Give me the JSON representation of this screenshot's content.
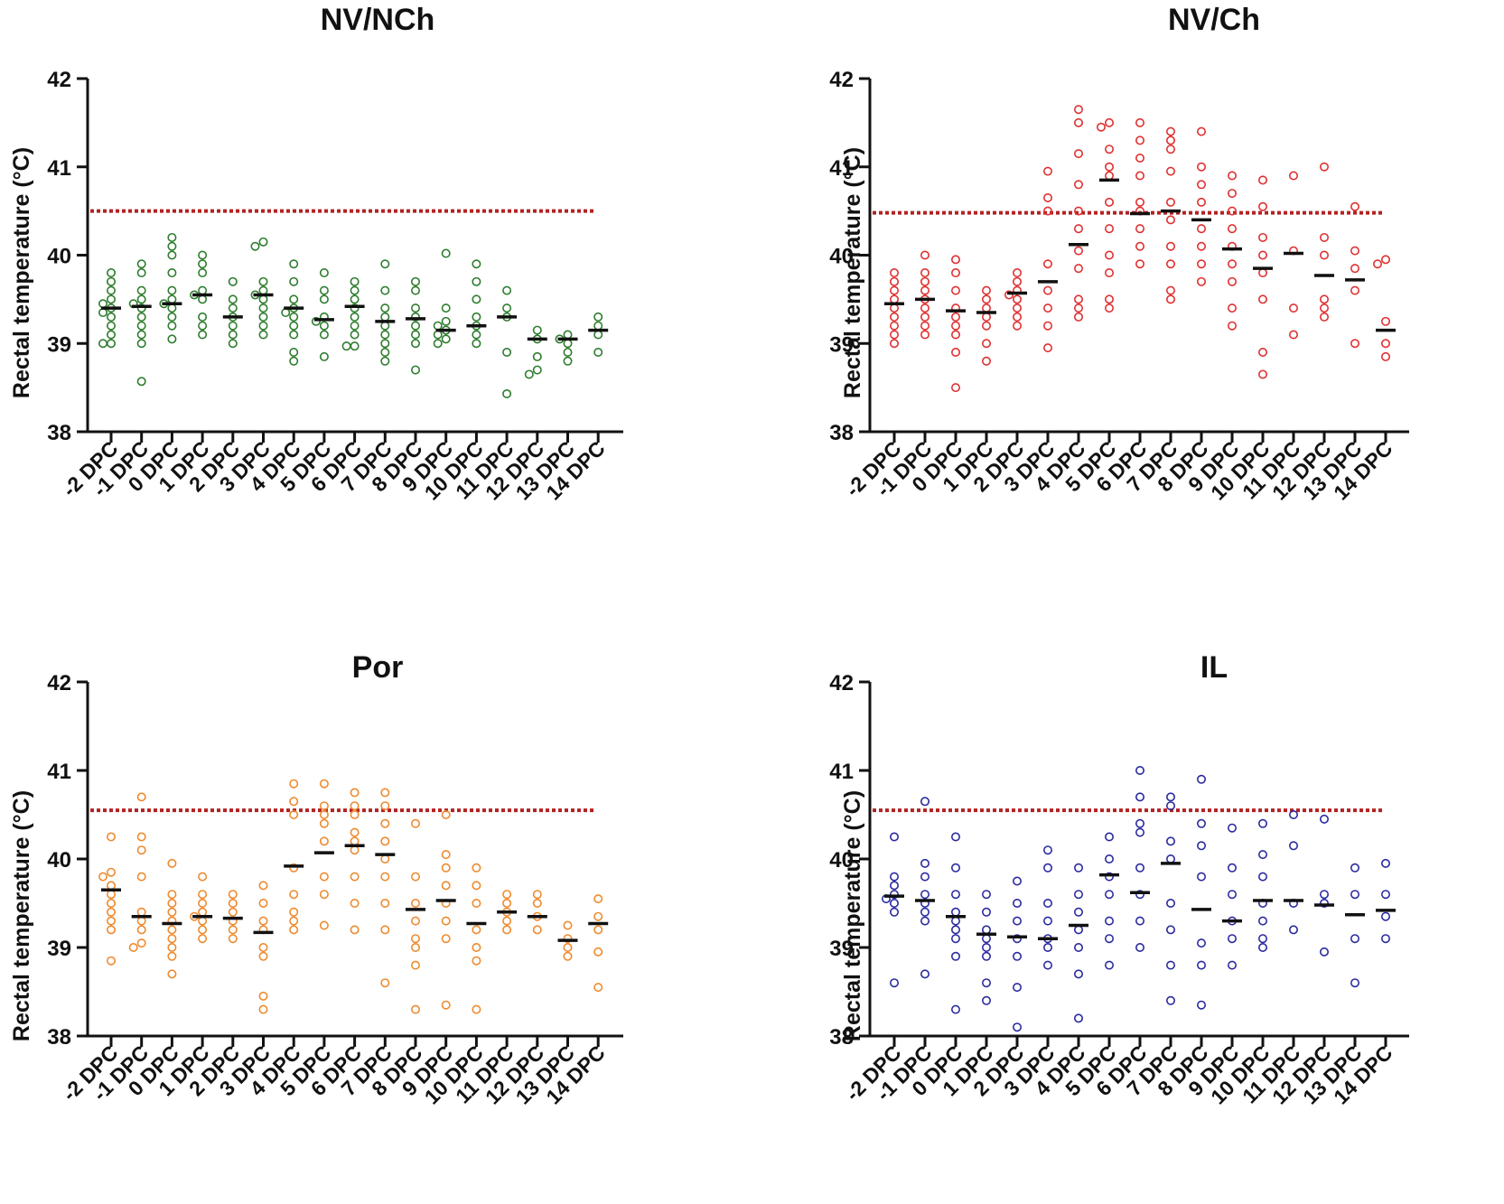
{
  "chart_data": [
    {
      "type": "scatter",
      "title": "NV/NCh",
      "ylabel": "Rectal temperature (°C)",
      "xlabel": "",
      "ylim": [
        38,
        42
      ],
      "yticks": [
        "38",
        "39",
        "40",
        "41",
        "42"
      ],
      "categories": [
        "-2 DPC",
        "-1 DPC",
        "0 DPC",
        "1 DPC",
        "2 DPC",
        "3 DPC",
        "4 DPC",
        "5 DPC",
        "6 DPC",
        "7 DPC",
        "8 DPC",
        "9 DPC",
        "10 DPC",
        "11 DPC",
        "12 DPC",
        "13 DPC",
        "14 DPC"
      ],
      "color": "#2e7d2e",
      "threshold": 40.5,
      "threshold_color": "#b22222",
      "medians": [
        39.4,
        39.42,
        39.45,
        39.55,
        39.3,
        39.55,
        39.4,
        39.27,
        39.42,
        39.25,
        39.28,
        39.15,
        39.2,
        39.3,
        39.05,
        39.05,
        39.15
      ],
      "points": [
        [
          39.8,
          39.7,
          39.6,
          39.5,
          39.45,
          39.4,
          39.35,
          39.3,
          39.2,
          39.1,
          39.0,
          39.0
        ],
        [
          39.9,
          39.8,
          39.6,
          39.5,
          39.45,
          39.4,
          39.3,
          39.2,
          39.1,
          39.0,
          38.57
        ],
        [
          40.2,
          40.1,
          40.0,
          39.8,
          39.6,
          39.5,
          39.45,
          39.4,
          39.3,
          39.2,
          39.05
        ],
        [
          40.0,
          39.9,
          39.8,
          39.6,
          39.55,
          39.5,
          39.3,
          39.2,
          39.1
        ],
        [
          39.7,
          39.5,
          39.4,
          39.3,
          39.2,
          39.1,
          39.0
        ],
        [
          40.15,
          40.1,
          39.7,
          39.6,
          39.55,
          39.5,
          39.4,
          39.3,
          39.2,
          39.1
        ],
        [
          39.9,
          39.7,
          39.5,
          39.4,
          39.35,
          39.3,
          39.2,
          39.1,
          38.9,
          38.8
        ],
        [
          39.8,
          39.6,
          39.5,
          39.3,
          39.25,
          39.2,
          39.1,
          38.85
        ],
        [
          39.7,
          39.6,
          39.5,
          39.4,
          39.3,
          39.2,
          39.1,
          38.97,
          38.97
        ],
        [
          39.9,
          39.6,
          39.4,
          39.3,
          39.2,
          39.1,
          39.0,
          38.9,
          38.8
        ],
        [
          39.7,
          39.6,
          39.4,
          39.3,
          39.2,
          39.1,
          39.0,
          38.7
        ],
        [
          40.02,
          39.4,
          39.25,
          39.2,
          39.15,
          39.1,
          39.05,
          39.0
        ],
        [
          39.9,
          39.7,
          39.5,
          39.3,
          39.2,
          39.1,
          39.0
        ],
        [
          39.6,
          39.4,
          39.3,
          38.9,
          38.43
        ],
        [
          39.15,
          39.05,
          38.85,
          38.7,
          38.65
        ],
        [
          39.1,
          39.05,
          39.0,
          38.9,
          38.8
        ],
        [
          39.3,
          39.2,
          39.1,
          38.9
        ]
      ]
    },
    {
      "type": "scatter",
      "title": "NV/Ch",
      "ylabel": "Rectal temperature (°C)",
      "xlabel": "",
      "ylim": [
        38,
        42
      ],
      "yticks": [
        "38",
        "39",
        "40",
        "41",
        "42"
      ],
      "categories": [
        "-2 DPC",
        "-1 DPC",
        "0 DPC",
        "1 DPC",
        "2 DPC",
        "3 DPC",
        "4 DPC",
        "5 DPC",
        "6 DPC",
        "7 DPC",
        "8 DPC",
        "9 DPC",
        "10 DPC",
        "11 DPC",
        "12 DPC",
        "13 DPC",
        "14 DPC"
      ],
      "color": "#e03030",
      "threshold": 40.48,
      "threshold_color": "#b22222",
      "medians": [
        39.45,
        39.5,
        39.37,
        39.35,
        39.57,
        39.7,
        40.12,
        40.85,
        40.47,
        40.5,
        40.4,
        40.07,
        39.85,
        40.02,
        39.77,
        39.72,
        39.15
      ],
      "points": [
        [
          39.8,
          39.7,
          39.6,
          39.5,
          39.4,
          39.3,
          39.2,
          39.1,
          39.0
        ],
        [
          40.0,
          39.8,
          39.7,
          39.6,
          39.5,
          39.4,
          39.3,
          39.2,
          39.1
        ],
        [
          39.95,
          39.8,
          39.6,
          39.4,
          39.3,
          39.2,
          39.1,
          38.9,
          38.5
        ],
        [
          39.6,
          39.5,
          39.4,
          39.3,
          39.2,
          39.0,
          38.8
        ],
        [
          39.8,
          39.7,
          39.6,
          39.55,
          39.5,
          39.4,
          39.3,
          39.2
        ],
        [
          40.95,
          40.65,
          40.5,
          39.9,
          39.6,
          39.4,
          39.2,
          38.95
        ],
        [
          41.65,
          41.5,
          41.15,
          40.8,
          40.5,
          40.3,
          40.05,
          39.85,
          39.5,
          39.4,
          39.3
        ],
        [
          41.5,
          41.45,
          41.2,
          41.0,
          40.9,
          40.6,
          40.3,
          40.0,
          39.8,
          39.5,
          39.4
        ],
        [
          41.5,
          41.3,
          41.1,
          40.9,
          40.6,
          40.5,
          40.3,
          40.1,
          39.9
        ],
        [
          41.4,
          41.3,
          41.2,
          40.95,
          40.6,
          40.4,
          40.1,
          39.9,
          39.6,
          39.5
        ],
        [
          41.4,
          41.0,
          40.8,
          40.6,
          40.3,
          40.1,
          39.9,
          39.7
        ],
        [
          40.9,
          40.7,
          40.5,
          40.3,
          40.1,
          39.9,
          39.7,
          39.4,
          39.2
        ],
        [
          40.85,
          40.55,
          40.2,
          40.0,
          39.8,
          39.5,
          38.9,
          38.65
        ],
        [
          40.9,
          40.05,
          39.4,
          39.1
        ],
        [
          41.0,
          40.2,
          40.0,
          39.5,
          39.4,
          39.3
        ],
        [
          40.55,
          40.05,
          39.85,
          39.6,
          39.0
        ],
        [
          39.95,
          39.9,
          39.25,
          39.0,
          38.85
        ]
      ]
    },
    {
      "type": "scatter",
      "title": "Por",
      "ylabel": "Rectal temperature (°C)",
      "xlabel": "",
      "ylim": [
        38,
        42
      ],
      "yticks": [
        "38",
        "39",
        "40",
        "41",
        "42"
      ],
      "categories": [
        "-2 DPC",
        "-1 DPC",
        "0 DPC",
        "1 DPC",
        "2 DPC",
        "3 DPC",
        "4 DPC",
        "5 DPC",
        "6 DPC",
        "7 DPC",
        "8 DPC",
        "9 DPC",
        "10 DPC",
        "11 DPC",
        "12 DPC",
        "13 DPC",
        "14 DPC"
      ],
      "color": "#ee8a2e",
      "threshold": 40.55,
      "threshold_color": "#b22222",
      "medians": [
        39.65,
        39.35,
        39.27,
        39.35,
        39.33,
        39.17,
        39.92,
        40.07,
        40.15,
        40.05,
        39.43,
        39.53,
        39.27,
        39.4,
        39.35,
        39.08,
        39.27
      ],
      "points": [
        [
          40.25,
          39.85,
          39.8,
          39.7,
          39.6,
          39.5,
          39.4,
          39.3,
          39.2,
          38.85
        ],
        [
          40.7,
          40.25,
          40.1,
          39.8,
          39.4,
          39.3,
          39.2,
          39.05,
          39.0
        ],
        [
          39.95,
          39.6,
          39.5,
          39.4,
          39.3,
          39.2,
          39.1,
          39.0,
          38.9,
          38.7
        ],
        [
          39.8,
          39.6,
          39.5,
          39.4,
          39.35,
          39.3,
          39.2,
          39.1
        ],
        [
          39.6,
          39.5,
          39.4,
          39.3,
          39.2,
          39.1
        ],
        [
          39.7,
          39.5,
          39.3,
          39.2,
          39.0,
          38.9,
          38.45,
          38.3
        ],
        [
          40.85,
          40.65,
          40.5,
          39.9,
          39.6,
          39.4,
          39.3,
          39.2
        ],
        [
          40.85,
          40.6,
          40.5,
          40.4,
          40.2,
          39.8,
          39.6,
          39.25
        ],
        [
          40.75,
          40.6,
          40.5,
          40.3,
          40.2,
          40.1,
          39.8,
          39.5,
          39.2
        ],
        [
          40.75,
          40.6,
          40.4,
          40.2,
          40.0,
          39.8,
          39.5,
          39.2,
          38.6
        ],
        [
          40.4,
          39.8,
          39.5,
          39.3,
          39.1,
          39.0,
          38.8,
          38.3
        ],
        [
          40.5,
          40.05,
          39.9,
          39.7,
          39.5,
          39.3,
          39.1,
          38.35
        ],
        [
          39.9,
          39.7,
          39.5,
          39.2,
          39.0,
          38.85,
          38.3
        ],
        [
          39.6,
          39.5,
          39.4,
          39.3,
          39.2
        ],
        [
          39.6,
          39.5,
          39.35,
          39.2
        ],
        [
          39.25,
          39.1,
          39.0,
          38.9
        ],
        [
          39.55,
          39.35,
          39.2,
          38.95,
          38.55
        ]
      ]
    },
    {
      "type": "scatter",
      "title": "IL",
      "ylabel": "Rectal temperature (°C)",
      "xlabel": "",
      "ylim": [
        38,
        42
      ],
      "yticks": [
        "38",
        "39",
        "40",
        "41",
        "42"
      ],
      "categories": [
        "-2 DPC",
        "-1 DPC",
        "0 DPC",
        "1 DPC",
        "2 DPC",
        "3 DPC",
        "4 DPC",
        "5 DPC",
        "6 DPC",
        "7 DPC",
        "8 DPC",
        "9 DPC",
        "10 DPC",
        "11 DPC",
        "12 DPC",
        "13 DPC",
        "14 DPC"
      ],
      "color": "#2a2aa0",
      "threshold": 40.55,
      "threshold_color": "#b22222",
      "medians": [
        39.58,
        39.53,
        39.35,
        39.15,
        39.12,
        39.1,
        39.25,
        39.82,
        39.62,
        39.95,
        39.43,
        39.3,
        39.53,
        39.53,
        39.48,
        39.37,
        39.42
      ],
      "points": [
        [
          40.25,
          39.8,
          39.7,
          39.6,
          39.55,
          39.5,
          39.4,
          38.6
        ],
        [
          40.65,
          39.95,
          39.8,
          39.6,
          39.5,
          39.4,
          39.3,
          38.7
        ],
        [
          40.25,
          39.9,
          39.6,
          39.4,
          39.3,
          39.2,
          39.1,
          38.9,
          38.3
        ],
        [
          39.6,
          39.4,
          39.2,
          39.1,
          39.0,
          38.9,
          38.6,
          38.4
        ],
        [
          39.75,
          39.5,
          39.3,
          39.1,
          38.9,
          38.55,
          38.1
        ],
        [
          40.1,
          39.9,
          39.5,
          39.3,
          39.1,
          39.0,
          38.8
        ],
        [
          39.9,
          39.6,
          39.4,
          39.2,
          39.0,
          38.7,
          38.2
        ],
        [
          40.25,
          40.0,
          39.8,
          39.6,
          39.3,
          39.1,
          38.8
        ],
        [
          41.0,
          40.7,
          40.4,
          40.3,
          39.9,
          39.6,
          39.3,
          39.0
        ],
        [
          40.7,
          40.6,
          40.2,
          40.0,
          39.5,
          39.2,
          38.8,
          38.4
        ],
        [
          40.9,
          40.4,
          40.15,
          39.8,
          39.05,
          38.8,
          38.35
        ],
        [
          40.35,
          39.9,
          39.6,
          39.3,
          39.1,
          38.8
        ],
        [
          40.4,
          40.05,
          39.8,
          39.5,
          39.3,
          39.1,
          39.0
        ],
        [
          40.5,
          40.15,
          39.5,
          39.2
        ],
        [
          40.45,
          39.6,
          39.5,
          38.95
        ],
        [
          39.9,
          39.6,
          39.1,
          38.6
        ],
        [
          39.95,
          39.6,
          39.35,
          39.1
        ]
      ]
    }
  ]
}
